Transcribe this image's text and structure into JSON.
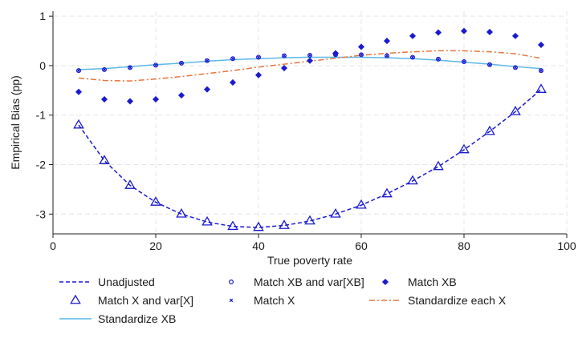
{
  "chart_data": {
    "type": "line",
    "title": "",
    "xlabel": "True poverty rate",
    "ylabel": "Empirical Bias (pp)",
    "xlim": [
      0,
      100
    ],
    "ylim": [
      -3.4,
      1.1
    ],
    "xticks": [
      0,
      20,
      40,
      60,
      80,
      100
    ],
    "yticks": [
      -3,
      -2,
      -1,
      0,
      1
    ],
    "grid": true,
    "legend_position": "bottom",
    "x": [
      5,
      10,
      15,
      20,
      25,
      30,
      35,
      40,
      45,
      50,
      55,
      60,
      65,
      70,
      75,
      80,
      85,
      90,
      95
    ],
    "series": [
      {
        "name": "Unadjusted",
        "style": "dashed-line",
        "color": "#1a1ad0",
        "values": [
          -1.2,
          -1.92,
          -2.42,
          -2.76,
          -3.0,
          -3.16,
          -3.25,
          -3.27,
          -3.23,
          -3.14,
          -3.0,
          -2.82,
          -2.59,
          -2.33,
          -2.04,
          -1.7,
          -1.33,
          -0.93,
          -0.48
        ]
      },
      {
        "name": "Match X and var[X]",
        "style": "triangle-marker",
        "color": "#1a1ad0",
        "values": [
          -1.2,
          -1.92,
          -2.42,
          -2.76,
          -3.0,
          -3.16,
          -3.25,
          -3.27,
          -3.23,
          -3.14,
          -3.0,
          -2.82,
          -2.59,
          -2.33,
          -2.04,
          -1.7,
          -1.33,
          -0.93,
          -0.48
        ]
      },
      {
        "name": "Standardize XB",
        "style": "solid-line",
        "color": "#5bb8e8",
        "values": [
          -0.08,
          -0.06,
          -0.02,
          0.02,
          0.05,
          0.09,
          0.12,
          0.14,
          0.16,
          0.17,
          0.17,
          0.17,
          0.16,
          0.14,
          0.11,
          0.07,
          0.03,
          -0.02,
          -0.06
        ]
      },
      {
        "name": "Match XB and var[XB]",
        "style": "hollow-circle-marker",
        "color": "#1a1ad0",
        "values": [
          -0.1,
          -0.08,
          -0.04,
          0.01,
          0.05,
          0.1,
          0.14,
          0.17,
          0.2,
          0.21,
          0.22,
          0.22,
          0.2,
          0.17,
          0.13,
          0.08,
          0.02,
          -0.04,
          -0.1
        ]
      },
      {
        "name": "Match X",
        "style": "x-marker",
        "color": "#1a1ad0",
        "values": [
          -0.1,
          -0.08,
          -0.04,
          0.01,
          0.05,
          0.1,
          0.14,
          0.17,
          0.2,
          0.21,
          0.22,
          0.22,
          0.2,
          0.17,
          0.13,
          0.08,
          0.02,
          -0.04,
          -0.1
        ]
      },
      {
        "name": "Match XB",
        "style": "diamond-marker",
        "color": "#1a1ad0",
        "values": [
          -0.53,
          -0.68,
          -0.72,
          -0.68,
          -0.6,
          -0.48,
          -0.34,
          -0.19,
          -0.05,
          0.1,
          0.25,
          0.38,
          0.5,
          0.6,
          0.67,
          0.7,
          0.68,
          0.6,
          0.42
        ]
      },
      {
        "name": "Standardize each X",
        "style": "dash-dot-line",
        "color": "#e8743b",
        "values": [
          -0.25,
          -0.3,
          -0.31,
          -0.27,
          -0.22,
          -0.16,
          -0.1,
          -0.03,
          0.03,
          0.09,
          0.15,
          0.21,
          0.25,
          0.28,
          0.3,
          0.3,
          0.28,
          0.24,
          0.15
        ]
      }
    ]
  }
}
